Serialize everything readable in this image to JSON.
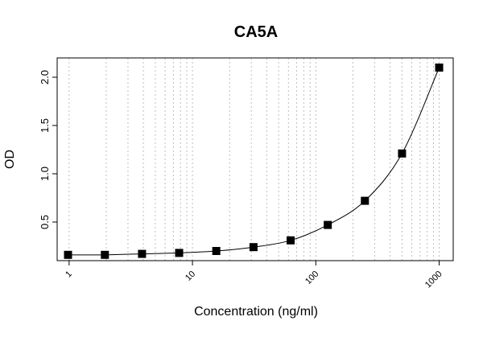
{
  "chart_data": {
    "type": "scatter",
    "title": "CA5A",
    "xlabel": "Concentration (ng/ml)",
    "ylabel": "OD",
    "x_scale": "log",
    "xlim": [
      0.8,
      1300
    ],
    "ylim": [
      0.1,
      2.2
    ],
    "x_ticks": [
      {
        "value": 1,
        "label": "1"
      },
      {
        "value": 10,
        "label": "10"
      },
      {
        "value": 100,
        "label": "100"
      },
      {
        "value": 1000,
        "label": "1000"
      }
    ],
    "y_ticks": [
      {
        "value": 0.5,
        "label": "0.5"
      },
      {
        "value": 1.0,
        "label": "1.0"
      },
      {
        "value": 1.5,
        "label": "1.5"
      },
      {
        "value": 2.0,
        "label": "2.0"
      }
    ],
    "grid": "vertical-dotted",
    "marker": "square",
    "fit_curve": true,
    "points": [
      {
        "x": 0.98,
        "y": 0.16
      },
      {
        "x": 1.95,
        "y": 0.16
      },
      {
        "x": 3.9,
        "y": 0.17
      },
      {
        "x": 7.8,
        "y": 0.18
      },
      {
        "x": 15.6,
        "y": 0.2
      },
      {
        "x": 31.25,
        "y": 0.24
      },
      {
        "x": 62.5,
        "y": 0.31
      },
      {
        "x": 125,
        "y": 0.47
      },
      {
        "x": 250,
        "y": 0.72
      },
      {
        "x": 500,
        "y": 1.21
      },
      {
        "x": 1000,
        "y": 2.1
      }
    ]
  }
}
